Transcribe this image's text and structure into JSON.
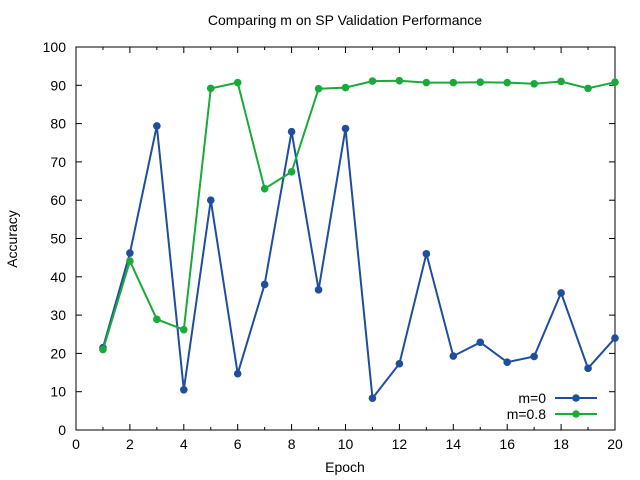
{
  "chart_data": {
    "type": "line",
    "title": "Comparing m on SP Validation Performance",
    "xlabel": "Epoch",
    "ylabel": "Accuracy",
    "xlim": [
      0,
      20
    ],
    "ylim": [
      0,
      100
    ],
    "xticks": [
      0,
      2,
      4,
      6,
      8,
      10,
      12,
      14,
      16,
      18,
      20
    ],
    "yticks": [
      0,
      10,
      20,
      30,
      40,
      50,
      60,
      70,
      80,
      90,
      100
    ],
    "grid": false,
    "legend_position": "bottom-right",
    "x": [
      1,
      2,
      3,
      4,
      5,
      6,
      7,
      8,
      9,
      10,
      11,
      12,
      13,
      14,
      15,
      16,
      17,
      18,
      19,
      20
    ],
    "series": [
      {
        "name": "m=0",
        "color": "#1f4e9f",
        "values": [
          21.5,
          46.2,
          79.4,
          10.5,
          60.0,
          14.7,
          38.0,
          77.9,
          36.6,
          78.7,
          8.3,
          17.3,
          46.0,
          19.3,
          22.9,
          17.7,
          19.2,
          35.8,
          16.1,
          24.0
        ]
      },
      {
        "name": "m=0.8",
        "color": "#1aaa3a",
        "values": [
          21.0,
          44.1,
          28.9,
          26.2,
          89.2,
          90.7,
          63.0,
          67.4,
          89.1,
          89.4,
          91.1,
          91.2,
          90.7,
          90.7,
          90.8,
          90.7,
          90.4,
          91.0,
          89.2,
          90.8
        ]
      }
    ]
  }
}
